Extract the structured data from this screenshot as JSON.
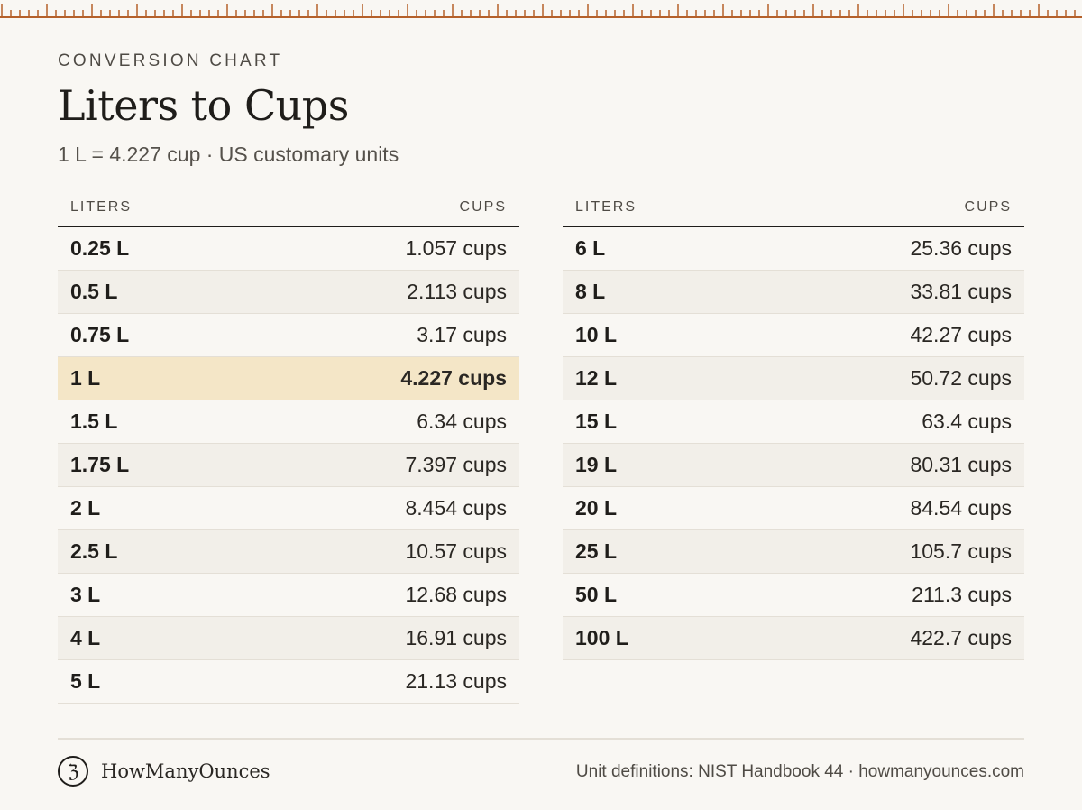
{
  "header": {
    "eyebrow": "CONVERSION CHART",
    "title": "Liters to Cups",
    "subtitle": "1 L = 4.227 cup · US customary units"
  },
  "accent_color": "#b5602a",
  "highlight_color": "#f4e6c7",
  "tables": [
    {
      "headers": {
        "liters": "LITERS",
        "cups": "CUPS"
      },
      "rows": [
        {
          "liters": "0.25 L",
          "cups": "1.057 cups"
        },
        {
          "liters": "0.5 L",
          "cups": "2.113 cups"
        },
        {
          "liters": "0.75 L",
          "cups": "3.17 cups"
        },
        {
          "liters": "1 L",
          "cups": "4.227 cups",
          "highlight": true
        },
        {
          "liters": "1.5 L",
          "cups": "6.34 cups"
        },
        {
          "liters": "1.75 L",
          "cups": "7.397 cups"
        },
        {
          "liters": "2 L",
          "cups": "8.454 cups"
        },
        {
          "liters": "2.5 L",
          "cups": "10.57 cups"
        },
        {
          "liters": "3 L",
          "cups": "12.68 cups"
        },
        {
          "liters": "4 L",
          "cups": "16.91 cups"
        },
        {
          "liters": "5 L",
          "cups": "21.13 cups"
        }
      ]
    },
    {
      "headers": {
        "liters": "LITERS",
        "cups": "CUPS"
      },
      "rows": [
        {
          "liters": "6 L",
          "cups": "25.36 cups"
        },
        {
          "liters": "8 L",
          "cups": "33.81 cups"
        },
        {
          "liters": "10 L",
          "cups": "42.27 cups"
        },
        {
          "liters": "12 L",
          "cups": "50.72 cups"
        },
        {
          "liters": "15 L",
          "cups": "63.4 cups"
        },
        {
          "liters": "19 L",
          "cups": "80.31 cups"
        },
        {
          "liters": "20 L",
          "cups": "84.54 cups"
        },
        {
          "liters": "25 L",
          "cups": "105.7 cups"
        },
        {
          "liters": "50 L",
          "cups": "211.3 cups"
        },
        {
          "liters": "100 L",
          "cups": "422.7 cups"
        }
      ]
    }
  ],
  "footer": {
    "logo_glyph": "ℨ",
    "logo_icon": "ounce-logo-icon",
    "brand": "HowManyOunces",
    "source": "Unit definitions: NIST Handbook 44 · howmanyounces.com"
  }
}
